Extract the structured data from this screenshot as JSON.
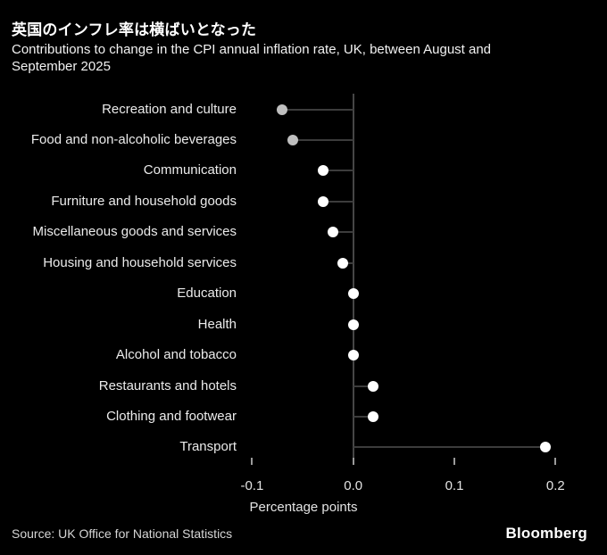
{
  "header": {
    "title": "英国のインフレ率は横ばいとなった",
    "subtitle": "Contributions to change in the CPI annual inflation rate, UK, between August and September 2025"
  },
  "chart_data": {
    "type": "lollipop",
    "orientation": "horizontal",
    "categories": [
      "Recreation and culture",
      "Food and non-alcoholic beverages",
      "Communication",
      "Furniture and household goods",
      "Miscellaneous goods and services",
      "Housing and household services",
      "Education",
      "Health",
      "Alcohol and tobacco",
      "Restaurants and hotels",
      "Clothing and footwear",
      "Transport"
    ],
    "values": [
      -0.07,
      -0.06,
      -0.03,
      -0.03,
      -0.02,
      -0.01,
      0.0,
      0.0,
      0.0,
      0.02,
      0.02,
      0.19
    ],
    "dot_colors": [
      "#bfbfbf",
      "#bfbfbf",
      "#ffffff",
      "#ffffff",
      "#ffffff",
      "#ffffff",
      "#ffffff",
      "#ffffff",
      "#ffffff",
      "#ffffff",
      "#ffffff",
      "#ffffff"
    ],
    "xlabel": "Percentage points",
    "x_ticks": [
      -0.1,
      0.0,
      0.1,
      0.2
    ],
    "x_tick_labels": [
      "-0.1",
      "0.0",
      "0.1",
      "0.2"
    ],
    "xlim": [
      -0.115,
      0.235
    ],
    "grid": false,
    "zero_baseline": true
  },
  "footer": {
    "source": "Source: UK Office for National Statistics",
    "brand": "Bloomberg"
  },
  "colors": {
    "background": "#000000",
    "stem": "#3c3c3c",
    "axis_line": "#464646",
    "tick": "#9b9b9b",
    "muted_dot": "#bfbfbf",
    "dot": "#ffffff"
  }
}
